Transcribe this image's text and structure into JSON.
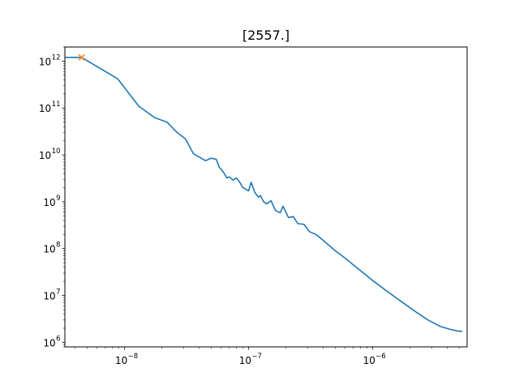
{
  "chart_data": {
    "type": "line",
    "title": "[2557.]",
    "xlabel": "",
    "ylabel": "",
    "xscale": "log",
    "yscale": "log",
    "xlim": [
      3.3e-09,
      5.8e-06
    ],
    "ylim": [
      800000.0,
      2000000000000.0
    ],
    "grid": false,
    "x_ticks": [
      {
        "value": 1e-08,
        "base": "10",
        "exp": "−8"
      },
      {
        "value": 1e-07,
        "base": "10",
        "exp": "−7"
      },
      {
        "value": 1e-06,
        "base": "10",
        "exp": "−6"
      }
    ],
    "y_ticks": [
      {
        "value": 1000000.0,
        "base": "10",
        "exp": "6"
      },
      {
        "value": 10000000.0,
        "base": "10",
        "exp": "7"
      },
      {
        "value": 100000000.0,
        "base": "10",
        "exp": "8"
      },
      {
        "value": 1000000000.0,
        "base": "10",
        "exp": "9"
      },
      {
        "value": 10000000000.0,
        "base": "10",
        "exp": "10"
      },
      {
        "value": 100000000000.0,
        "base": "10",
        "exp": "11"
      },
      {
        "value": 1000000000000.0,
        "base": "10",
        "exp": "12"
      }
    ],
    "series": [
      {
        "color": "#1f77b4",
        "x": [
          3.3e-09,
          4.5e-09,
          8.8e-09,
          1.3e-08,
          1.75e-08,
          2.2e-08,
          2.65e-08,
          3.1e-08,
          3.6e-08,
          4e-08,
          4.5e-08,
          5e-08,
          5.5e-08,
          5.8e-08,
          6.3e-08,
          6.7e-08,
          7e-08,
          7.5e-08,
          8e-08,
          8.5e-08,
          9e-08,
          9.5e-08,
          1e-07,
          1.05e-07,
          1.12e-07,
          1.2e-07,
          1.25e-07,
          1.32e-07,
          1.4e-07,
          1.52e-07,
          1.65e-07,
          1.8e-07,
          1.9e-07,
          2.1e-07,
          2.3e-07,
          2.5e-07,
          2.8e-07,
          3.1e-07,
          3.5e-07,
          4e-07,
          4.5e-07,
          5e-07,
          6e-07,
          7e-07,
          8e-07,
          1e-06,
          1.3e-06,
          1.7e-06,
          2.2e-06,
          2.8e-06,
          3.5e-06,
          4.2e-06,
          4.8e-06,
          5.3e-06
        ],
        "y": [
          1200000000000.0,
          1200000000000.0,
          420000000000.0,
          110000000000.0,
          62000000000.0,
          50000000000.0,
          30000000000.0,
          22000000000.0,
          10500000000.0,
          9000000000.0,
          7500000000.0,
          8500000000.0,
          8000000000.0,
          5500000000.0,
          4200000000.0,
          3200000000.0,
          3400000000.0,
          2900000000.0,
          3200000000.0,
          2600000000.0,
          2000000000.0,
          1850000000.0,
          1700000000.0,
          2600000000.0,
          1600000000.0,
          1250000000.0,
          1350000000.0,
          1000000000.0,
          900000000.0,
          1050000000.0,
          650000000.0,
          580000000.0,
          800000000.0,
          460000000.0,
          480000000.0,
          340000000.0,
          330000000.0,
          230000000.0,
          200000000.0,
          150000000.0,
          115000000.0,
          90000000.0,
          63000000.0,
          45000000.0,
          34000000.0,
          21000000.0,
          12500000.0,
          7500000.0,
          4600000.0,
          3000000.0,
          2200000.0,
          1900000.0,
          1750000.0,
          1700000.0
        ]
      }
    ],
    "marker": {
      "x": 4.5e-09,
      "y": 1200000000000.0,
      "symbol": "x",
      "color": "#ff7f0e"
    }
  }
}
